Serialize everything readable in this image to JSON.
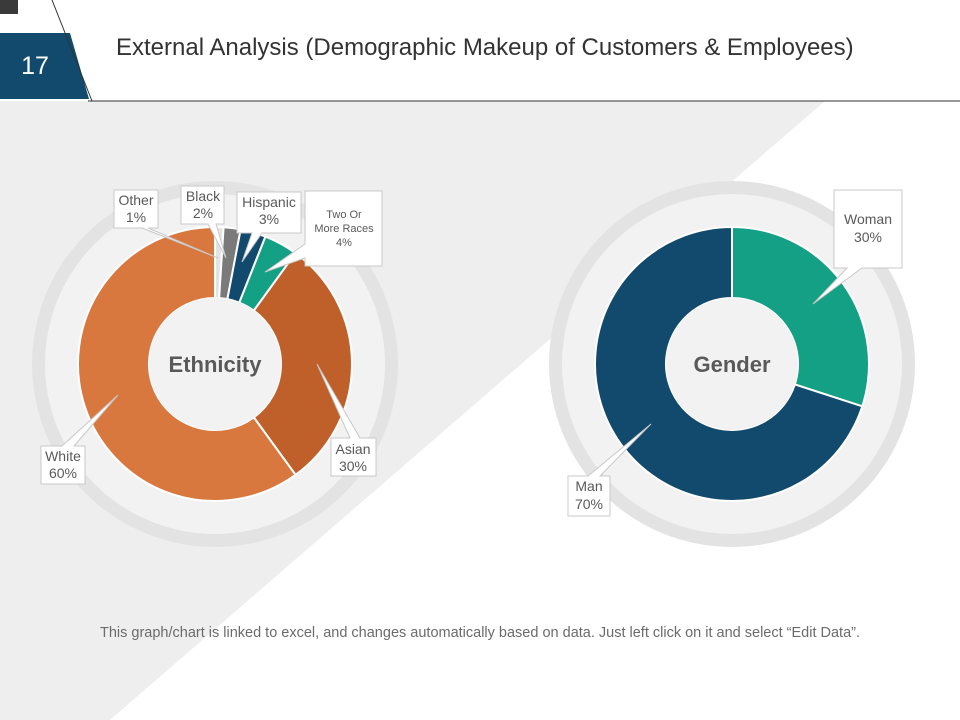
{
  "slide": {
    "number": "17",
    "title": "External Analysis (Demographic Makeup of Customers & Employees)",
    "footnote": "This graph/chart is linked to excel, and changes automatically based on data. Just left click on it and select “Edit Data”."
  },
  "colors": {
    "number_badge": "#124A6D",
    "white": "#D9783E",
    "asian": "#BF5F29",
    "teal": "#13A085",
    "navy": "#124A6D",
    "black_group": "#7A7A7A",
    "ring": "#E3E3E3",
    "hole": "#F2F2F2"
  },
  "chart_data": [
    {
      "type": "pie",
      "donut": true,
      "center_label": "Ethnicity",
      "slices": [
        {
          "label": "Other",
          "value": 1,
          "value_label": "1%",
          "color": "#E3E3E3"
        },
        {
          "label": "Black",
          "value": 2,
          "value_label": "2%",
          "color": "#7A7A7A"
        },
        {
          "label": "Hispanic",
          "value": 3,
          "value_label": "3%",
          "color": "#124A6D"
        },
        {
          "label": "Two Or More Races",
          "label_lines": [
            "Two Or",
            "More Races"
          ],
          "value": 4,
          "value_label": "4%",
          "color": "#13A085"
        },
        {
          "label": "Asian",
          "value": 30,
          "value_label": "30%",
          "color": "#BF5F29"
        },
        {
          "label": "White",
          "value": 60,
          "value_label": "60%",
          "color": "#D9783E"
        }
      ]
    },
    {
      "type": "pie",
      "donut": true,
      "center_label": "Gender",
      "slices": [
        {
          "label": "Woman",
          "value": 30,
          "value_label": "30%",
          "color": "#13A085"
        },
        {
          "label": "Man",
          "value": 70,
          "value_label": "70%",
          "color": "#124A6D"
        }
      ]
    }
  ]
}
